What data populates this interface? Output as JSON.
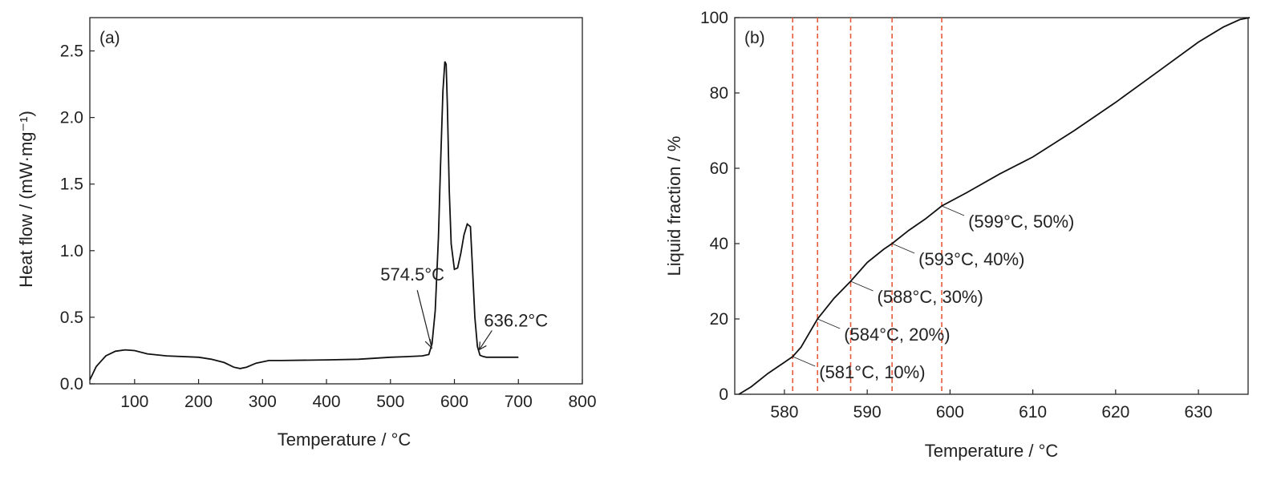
{
  "chart_data": [
    {
      "type": "line",
      "panel_label": "(a)",
      "xlabel": "Temperature / °C",
      "ylabel": "Heat flow / (mW·mg⁻¹)",
      "xlim": [
        30,
        800
      ],
      "ylim": [
        0.0,
        2.75
      ],
      "xticks": [
        100,
        200,
        300,
        400,
        500,
        600,
        700,
        800
      ],
      "yticks": [
        0.0,
        0.5,
        1.0,
        1.5,
        2.0,
        2.5
      ],
      "ytick_labels": [
        "0.0",
        "0.5",
        "1.0",
        "1.5",
        "2.0",
        "2.5"
      ],
      "series": [
        {
          "x": [
            30,
            40,
            55,
            70,
            85,
            100,
            120,
            150,
            200,
            220,
            240,
            255,
            265,
            275,
            290,
            310,
            330,
            400,
            450,
            500,
            530,
            550,
            560,
            565,
            570,
            575,
            578,
            582,
            585,
            587,
            589,
            592,
            595,
            600,
            605,
            610,
            615,
            620,
            625,
            628,
            632,
            636,
            640,
            645,
            650,
            670,
            700
          ],
          "y": [
            0.03,
            0.13,
            0.21,
            0.245,
            0.255,
            0.25,
            0.225,
            0.21,
            0.2,
            0.185,
            0.16,
            0.125,
            0.115,
            0.125,
            0.155,
            0.175,
            0.175,
            0.18,
            0.185,
            0.2,
            0.205,
            0.21,
            0.22,
            0.3,
            0.55,
            1.1,
            1.6,
            2.2,
            2.42,
            2.4,
            2.1,
            1.45,
            1.05,
            0.86,
            0.87,
            0.98,
            1.12,
            1.2,
            1.18,
            0.9,
            0.5,
            0.28,
            0.215,
            0.205,
            0.2,
            0.2,
            0.2
          ]
        }
      ],
      "annotations": [
        {
          "text": "574.5°C",
          "x": 574.5,
          "y": 0.21
        },
        {
          "text": "636.2°C",
          "x": 636.2,
          "y": 0.22
        }
      ],
      "grid": false
    },
    {
      "type": "line",
      "panel_label": "(b)",
      "xlabel": "Temperature / °C",
      "ylabel": "Liquid fraction / %",
      "xlim": [
        574,
        636
      ],
      "ylim": [
        0,
        100
      ],
      "xticks": [
        580,
        590,
        600,
        610,
        620,
        630
      ],
      "yticks": [
        0,
        20,
        40,
        60,
        80,
        100
      ],
      "series": [
        {
          "x": [
            574.5,
            576,
            578,
            580,
            581,
            582,
            584,
            586,
            588,
            590,
            592,
            593,
            595,
            597,
            599,
            602,
            606,
            610,
            615,
            620,
            625,
            630,
            633,
            635,
            636.2
          ],
          "y": [
            0,
            2,
            5.5,
            8.5,
            10,
            12.5,
            20,
            25.5,
            30,
            35,
            38.5,
            40,
            43.5,
            46.5,
            50,
            53.5,
            58.5,
            63,
            70,
            77.5,
            85.5,
            93.5,
            97.5,
            99.5,
            100
          ]
        }
      ],
      "vertical_lines_x": [
        581,
        584,
        588,
        593,
        599
      ],
      "vertical_line_color": "#e8593b",
      "annotations": [
        {
          "text": "(581°C, 10%)",
          "x": 581,
          "y": 10
        },
        {
          "text": "(584°C, 20%)",
          "x": 584,
          "y": 20
        },
        {
          "text": "(588°C, 30%)",
          "x": 588,
          "y": 30
        },
        {
          "text": "(593°C, 40%)",
          "x": 593,
          "y": 40
        },
        {
          "text": "(599°C, 50%)",
          "x": 599,
          "y": 50
        }
      ],
      "grid": false
    }
  ]
}
